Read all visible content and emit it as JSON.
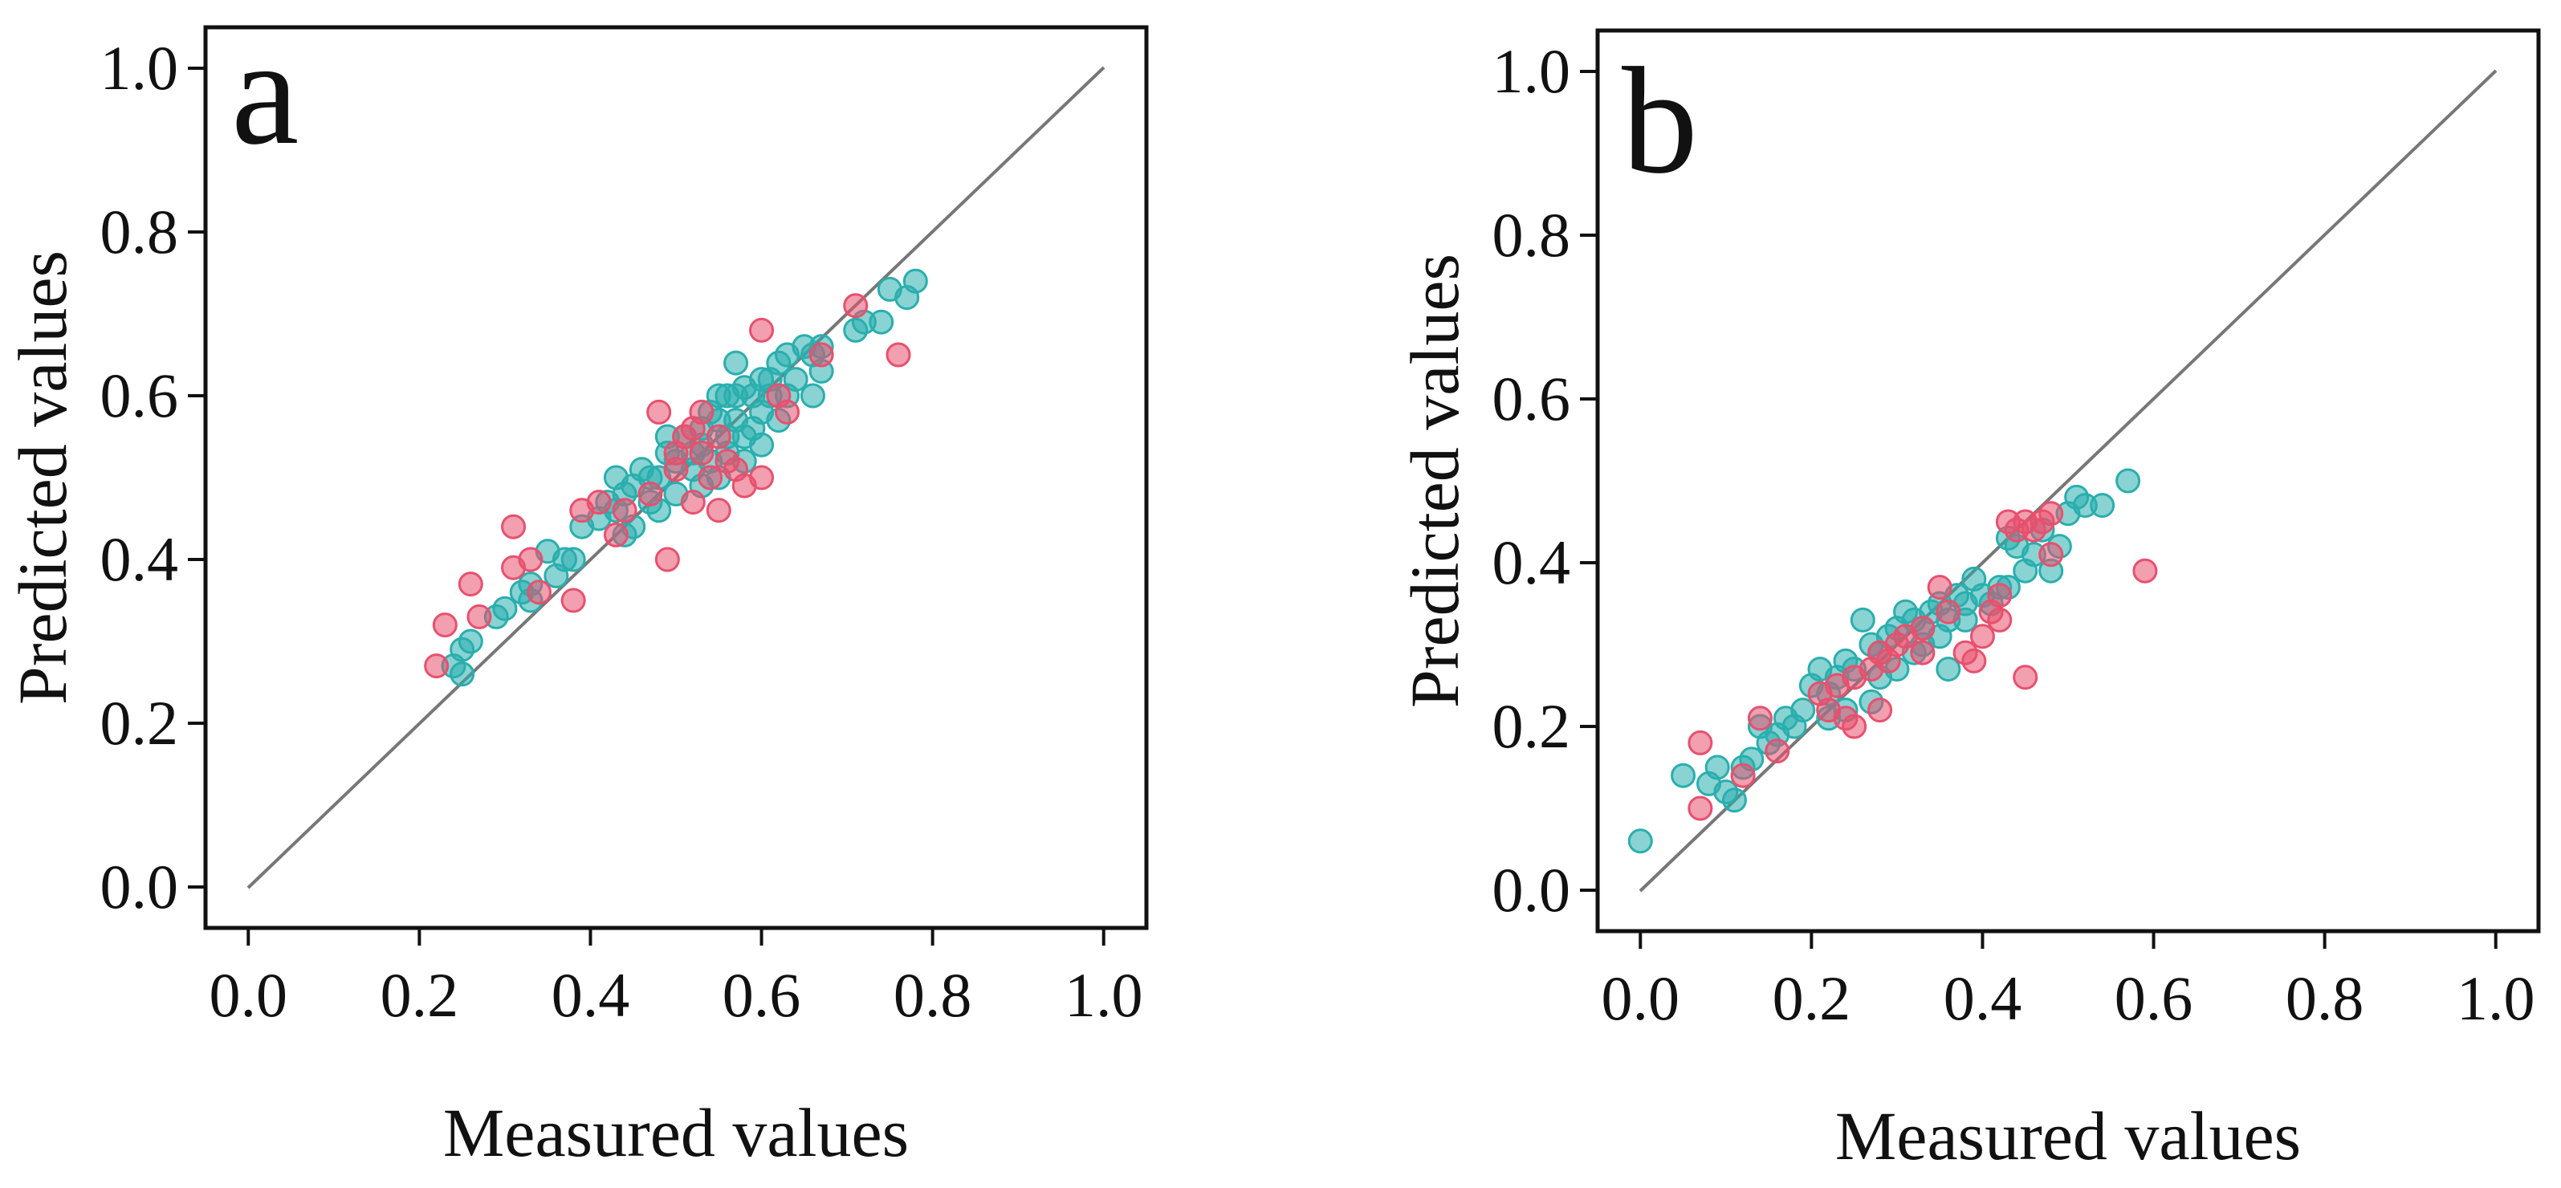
{
  "chart_data": [
    {
      "type": "scatter",
      "panel_label": "a",
      "xlabel": "Measured values",
      "ylabel": "Predicted values",
      "xlim": [
        -0.05,
        1.05
      ],
      "ylim": [
        -0.05,
        1.05
      ],
      "x_ticks": [
        "0.0",
        "0.2",
        "0.4",
        "0.6",
        "0.8",
        "1.0"
      ],
      "y_ticks": [
        "0.0",
        "0.2",
        "0.4",
        "0.6",
        "0.8",
        "1.0"
      ],
      "reference_line": {
        "from": [
          0,
          0
        ],
        "to": [
          1,
          1
        ],
        "color": "#777777"
      },
      "grid": false,
      "series": [
        {
          "color": "#2aaeae",
          "points": [
            [
              0.24,
              0.27
            ],
            [
              0.25,
              0.29
            ],
            [
              0.26,
              0.3
            ],
            [
              0.25,
              0.26
            ],
            [
              0.29,
              0.33
            ],
            [
              0.3,
              0.34
            ],
            [
              0.32,
              0.36
            ],
            [
              0.33,
              0.37
            ],
            [
              0.35,
              0.41
            ],
            [
              0.37,
              0.4
            ],
            [
              0.33,
              0.35
            ],
            [
              0.42,
              0.47
            ],
            [
              0.44,
              0.48
            ],
            [
              0.45,
              0.49
            ],
            [
              0.43,
              0.5
            ],
            [
              0.46,
              0.51
            ],
            [
              0.47,
              0.47
            ],
            [
              0.48,
              0.5
            ],
            [
              0.49,
              0.53
            ],
            [
              0.5,
              0.52
            ],
            [
              0.51,
              0.55
            ],
            [
              0.52,
              0.51
            ],
            [
              0.53,
              0.56
            ],
            [
              0.54,
              0.58
            ],
            [
              0.55,
              0.57
            ],
            [
              0.56,
              0.6
            ],
            [
              0.57,
              0.6
            ],
            [
              0.58,
              0.61
            ],
            [
              0.56,
              0.53
            ],
            [
              0.58,
              0.55
            ],
            [
              0.6,
              0.62
            ],
            [
              0.61,
              0.6
            ],
            [
              0.62,
              0.64
            ],
            [
              0.63,
              0.65
            ],
            [
              0.65,
              0.66
            ],
            [
              0.66,
              0.65
            ],
            [
              0.67,
              0.66
            ],
            [
              0.6,
              0.54
            ],
            [
              0.55,
              0.5
            ],
            [
              0.5,
              0.48
            ],
            [
              0.48,
              0.46
            ],
            [
              0.45,
              0.44
            ],
            [
              0.41,
              0.45
            ],
            [
              0.53,
              0.54
            ],
            [
              0.57,
              0.57
            ],
            [
              0.59,
              0.56
            ],
            [
              0.62,
              0.57
            ],
            [
              0.58,
              0.52
            ],
            [
              0.54,
              0.52
            ],
            [
              0.57,
              0.64
            ],
            [
              0.61,
              0.62
            ],
            [
              0.63,
              0.6
            ],
            [
              0.67,
              0.63
            ],
            [
              0.71,
              0.68
            ],
            [
              0.72,
              0.69
            ],
            [
              0.74,
              0.69
            ],
            [
              0.75,
              0.73
            ],
            [
              0.77,
              0.72
            ],
            [
              0.78,
              0.74
            ],
            [
              0.44,
              0.43
            ],
            [
              0.38,
              0.4
            ],
            [
              0.36,
              0.38
            ],
            [
              0.39,
              0.44
            ],
            [
              0.43,
              0.46
            ],
            [
              0.47,
              0.5
            ],
            [
              0.49,
              0.55
            ],
            [
              0.55,
              0.6
            ],
            [
              0.6,
              0.58
            ],
            [
              0.64,
              0.62
            ],
            [
              0.66,
              0.6
            ],
            [
              0.56,
              0.55
            ],
            [
              0.52,
              0.53
            ],
            [
              0.59,
              0.6
            ],
            [
              0.53,
              0.49
            ]
          ]
        },
        {
          "color": "#e8506e",
          "points": [
            [
              0.23,
              0.32
            ],
            [
              0.26,
              0.37
            ],
            [
              0.27,
              0.33
            ],
            [
              0.31,
              0.44
            ],
            [
              0.31,
              0.39
            ],
            [
              0.33,
              0.4
            ],
            [
              0.34,
              0.36
            ],
            [
              0.38,
              0.35
            ],
            [
              0.39,
              0.46
            ],
            [
              0.41,
              0.47
            ],
            [
              0.43,
              0.43
            ],
            [
              0.44,
              0.46
            ],
            [
              0.47,
              0.48
            ],
            [
              0.48,
              0.58
            ],
            [
              0.49,
              0.4
            ],
            [
              0.5,
              0.53
            ],
            [
              0.51,
              0.55
            ],
            [
              0.52,
              0.56
            ],
            [
              0.53,
              0.58
            ],
            [
              0.53,
              0.53
            ],
            [
              0.54,
              0.5
            ],
            [
              0.55,
              0.55
            ],
            [
              0.56,
              0.52
            ],
            [
              0.57,
              0.51
            ],
            [
              0.55,
              0.46
            ],
            [
              0.6,
              0.5
            ],
            [
              0.6,
              0.68
            ],
            [
              0.62,
              0.6
            ],
            [
              0.63,
              0.58
            ],
            [
              0.67,
              0.65
            ],
            [
              0.71,
              0.71
            ],
            [
              0.76,
              0.65
            ],
            [
              0.52,
              0.47
            ],
            [
              0.58,
              0.49
            ],
            [
              0.22,
              0.27
            ],
            [
              0.5,
              0.51
            ]
          ]
        }
      ]
    },
    {
      "type": "scatter",
      "panel_label": "b",
      "xlabel": "Measured values",
      "ylabel": "Predicted values",
      "xlim": [
        -0.05,
        1.05
      ],
      "ylim": [
        -0.05,
        1.05
      ],
      "x_ticks": [
        "0.0",
        "0.2",
        "0.4",
        "0.6",
        "0.8",
        "1.0"
      ],
      "y_ticks": [
        "0.0",
        "0.2",
        "0.4",
        "0.6",
        "0.8",
        "1.0"
      ],
      "reference_line": {
        "from": [
          0,
          0
        ],
        "to": [
          1,
          1
        ],
        "color": "#777777"
      },
      "grid": false,
      "series": [
        {
          "color": "#2aaeae",
          "points": [
            [
              0.0,
              0.06
            ],
            [
              0.05,
              0.14
            ],
            [
              0.08,
              0.13
            ],
            [
              0.09,
              0.15
            ],
            [
              0.1,
              0.12
            ],
            [
              0.12,
              0.15
            ],
            [
              0.13,
              0.16
            ],
            [
              0.14,
              0.2
            ],
            [
              0.16,
              0.19
            ],
            [
              0.17,
              0.21
            ],
            [
              0.18,
              0.2
            ],
            [
              0.19,
              0.22
            ],
            [
              0.2,
              0.25
            ],
            [
              0.21,
              0.27
            ],
            [
              0.22,
              0.24
            ],
            [
              0.23,
              0.26
            ],
            [
              0.24,
              0.28
            ],
            [
              0.25,
              0.27
            ],
            [
              0.26,
              0.33
            ],
            [
              0.27,
              0.3
            ],
            [
              0.28,
              0.29
            ],
            [
              0.29,
              0.31
            ],
            [
              0.3,
              0.32
            ],
            [
              0.31,
              0.34
            ],
            [
              0.32,
              0.33
            ],
            [
              0.33,
              0.3
            ],
            [
              0.34,
              0.34
            ],
            [
              0.35,
              0.35
            ],
            [
              0.36,
              0.33
            ],
            [
              0.37,
              0.36
            ],
            [
              0.38,
              0.35
            ],
            [
              0.39,
              0.38
            ],
            [
              0.4,
              0.36
            ],
            [
              0.41,
              0.35
            ],
            [
              0.42,
              0.37
            ],
            [
              0.43,
              0.43
            ],
            [
              0.44,
              0.42
            ],
            [
              0.45,
              0.39
            ],
            [
              0.46,
              0.41
            ],
            [
              0.47,
              0.44
            ],
            [
              0.48,
              0.39
            ],
            [
              0.49,
              0.42
            ],
            [
              0.5,
              0.46
            ],
            [
              0.51,
              0.48
            ],
            [
              0.52,
              0.47
            ],
            [
              0.54,
              0.47
            ],
            [
              0.57,
              0.5
            ],
            [
              0.36,
              0.27
            ],
            [
              0.32,
              0.29
            ],
            [
              0.27,
              0.23
            ],
            [
              0.24,
              0.22
            ],
            [
              0.22,
              0.21
            ],
            [
              0.38,
              0.33
            ],
            [
              0.35,
              0.31
            ],
            [
              0.3,
              0.27
            ],
            [
              0.15,
              0.18
            ],
            [
              0.11,
              0.11
            ],
            [
              0.43,
              0.37
            ],
            [
              0.33,
              0.32
            ],
            [
              0.28,
              0.26
            ]
          ]
        },
        {
          "color": "#e8506e",
          "points": [
            [
              0.07,
              0.1
            ],
            [
              0.07,
              0.18
            ],
            [
              0.12,
              0.14
            ],
            [
              0.14,
              0.21
            ],
            [
              0.16,
              0.17
            ],
            [
              0.21,
              0.24
            ],
            [
              0.22,
              0.22
            ],
            [
              0.23,
              0.25
            ],
            [
              0.24,
              0.21
            ],
            [
              0.25,
              0.2
            ],
            [
              0.25,
              0.26
            ],
            [
              0.27,
              0.27
            ],
            [
              0.28,
              0.22
            ],
            [
              0.28,
              0.29
            ],
            [
              0.29,
              0.28
            ],
            [
              0.31,
              0.31
            ],
            [
              0.33,
              0.32
            ],
            [
              0.35,
              0.37
            ],
            [
              0.36,
              0.34
            ],
            [
              0.38,
              0.29
            ],
            [
              0.39,
              0.28
            ],
            [
              0.4,
              0.31
            ],
            [
              0.41,
              0.34
            ],
            [
              0.42,
              0.33
            ],
            [
              0.43,
              0.45
            ],
            [
              0.44,
              0.44
            ],
            [
              0.45,
              0.45
            ],
            [
              0.46,
              0.44
            ],
            [
              0.47,
              0.45
            ],
            [
              0.48,
              0.41
            ],
            [
              0.48,
              0.46
            ],
            [
              0.45,
              0.26
            ],
            [
              0.59,
              0.39
            ],
            [
              0.33,
              0.29
            ],
            [
              0.42,
              0.36
            ],
            [
              0.3,
              0.3
            ]
          ]
        }
      ]
    }
  ]
}
